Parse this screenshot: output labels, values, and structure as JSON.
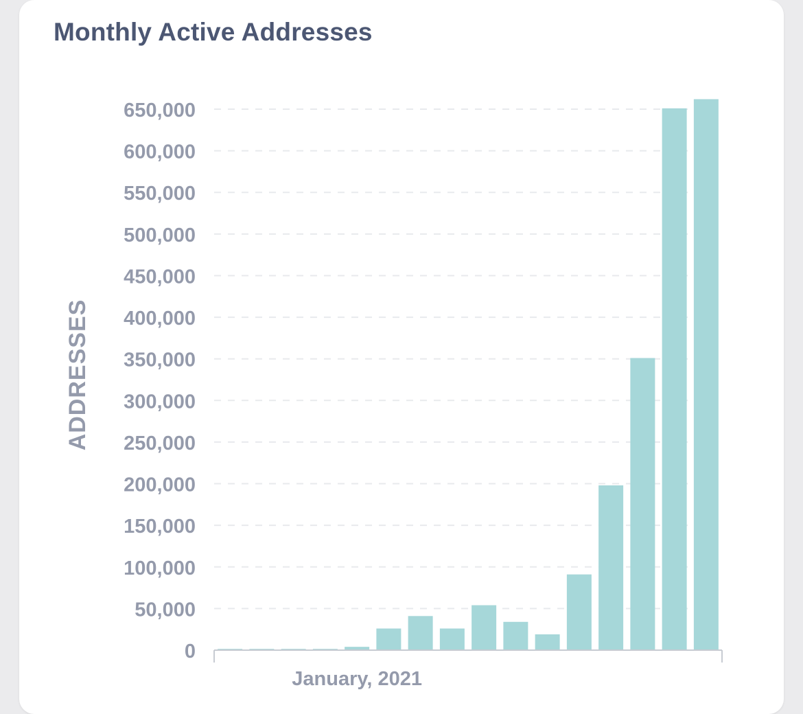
{
  "card": {
    "title": "Monthly Active Addresses"
  },
  "chart_data": {
    "type": "bar",
    "title": "Monthly Active Addresses",
    "xlabel": "",
    "ylabel": "ADDRESSES",
    "ylim": [
      0,
      650000
    ],
    "yticks": [
      0,
      50000,
      100000,
      150000,
      200000,
      250000,
      300000,
      350000,
      400000,
      450000,
      500000,
      550000,
      600000,
      650000
    ],
    "ytick_labels": [
      "0",
      "50,000",
      "100,000",
      "150,000",
      "200,000",
      "250,000",
      "300,000",
      "350,000",
      "400,000",
      "450,000",
      "500,000",
      "550,000",
      "600,000",
      "650,000"
    ],
    "xtick_labels": [
      {
        "index": 4,
        "label": "January, 2021"
      }
    ],
    "values": [
      1500,
      1500,
      1500,
      1500,
      4000,
      26000,
      41000,
      26000,
      54000,
      34000,
      19000,
      91000,
      198000,
      351000,
      651000,
      662000
    ],
    "bar_color": "#a6d7d9",
    "grid": true,
    "legend": "none"
  }
}
